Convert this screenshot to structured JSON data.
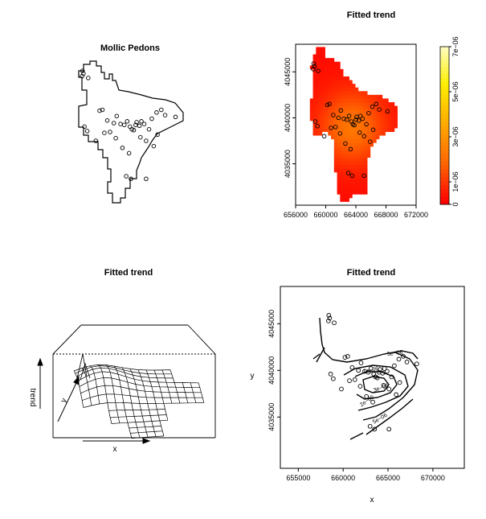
{
  "chart_data": [
    {
      "panel": "top-left",
      "type": "scatter",
      "title": "Mollic Pedons",
      "points": [
        [
          658400,
          4045900
        ],
        [
          658500,
          4045600
        ],
        [
          658350,
          4045300
        ],
        [
          659000,
          4045100
        ],
        [
          660500,
          4041500
        ],
        [
          661000,
          4040300
        ],
        [
          661700,
          4040000
        ],
        [
          662000,
          4040800
        ],
        [
          662400,
          4039900
        ],
        [
          662800,
          4039800
        ],
        [
          663100,
          4040200
        ],
        [
          663400,
          4039600
        ],
        [
          663600,
          4039300
        ],
        [
          664100,
          4040100
        ],
        [
          664400,
          4039700
        ],
        [
          664900,
          4039900
        ],
        [
          665400,
          4039300
        ],
        [
          665700,
          4040500
        ],
        [
          666200,
          4041200
        ],
        [
          666700,
          4041500
        ],
        [
          667100,
          4040900
        ],
        [
          668200,
          4040700
        ],
        [
          658600,
          4039600
        ],
        [
          658900,
          4039100
        ],
        [
          660700,
          4038900
        ],
        [
          661900,
          4038300
        ],
        [
          662600,
          4037200
        ],
        [
          663300,
          4036600
        ],
        [
          664500,
          4038400
        ],
        [
          665100,
          4038000
        ],
        [
          665900,
          4037400
        ],
        [
          666300,
          4038700
        ],
        [
          663000,
          4034000
        ],
        [
          663500,
          4033700
        ],
        [
          665100,
          4033700
        ],
        [
          663800,
          4039200
        ],
        [
          664000,
          4039800
        ],
        [
          664600,
          4040200
        ],
        [
          661300,
          4039000
        ],
        [
          660200,
          4041400
        ],
        [
          659800,
          4038000
        ]
      ]
    },
    {
      "panel": "top-right",
      "type": "heatmap",
      "title": "Fitted trend",
      "x_ticks": [
        "656000",
        "660000",
        "664000",
        "668000",
        "672000"
      ],
      "y_ticks": [
        "4035000",
        "4040000",
        "4045000"
      ],
      "xlim": [
        656000,
        672000
      ],
      "ylim": [
        4030500,
        4048000
      ],
      "colorbar_ticks": [
        "0",
        "1e−06",
        "3e−06",
        "5e−06",
        "7e−06"
      ],
      "colorbar_range": [
        0,
        7e-06
      ],
      "colormap": [
        "#ff0000",
        "#ff6600",
        "#ffaa00",
        "#ffee00",
        "#ffffcc"
      ]
    },
    {
      "panel": "bottom-left",
      "type": "surface",
      "title": "Fitted trend",
      "xlabel": "x",
      "ylabel": "y",
      "zlabel": "trend"
    },
    {
      "panel": "bottom-right",
      "type": "contour",
      "title": "Fitted trend",
      "xlabel": "x",
      "ylabel": "y",
      "x_ticks": [
        "655000",
        "660000",
        "665000",
        "670000"
      ],
      "y_ticks": [
        "4035000",
        "4040000",
        "4045000"
      ],
      "xlim": [
        653000,
        673500
      ],
      "ylim": [
        4029500,
        4049000
      ],
      "contour_labels": [
        "5e−06",
        "1e−06",
        "3e−06",
        "2e−06",
        "5e−06"
      ]
    }
  ]
}
